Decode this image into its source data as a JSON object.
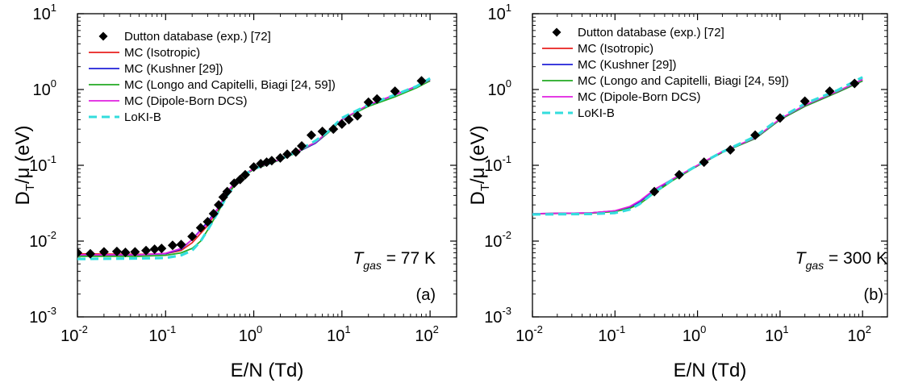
{
  "chart_data": [
    {
      "type": "line",
      "panel_label": "(a)",
      "annotation": {
        "main": "T",
        "sub": "gas",
        "rest": " = 77 K"
      },
      "xlabel": "E/N (Td)",
      "ylabel": {
        "main": "D",
        "sub": "T",
        "rest": "/μ (eV)"
      },
      "xscale": "log",
      "yscale": "log",
      "xlim": [
        0.01,
        200
      ],
      "ylim": [
        0.001,
        10
      ],
      "xticks": [
        {
          "base": "10",
          "exp": "-2"
        },
        {
          "base": "10",
          "exp": "-1"
        },
        {
          "base": "10",
          "exp": "0"
        },
        {
          "base": "10",
          "exp": "1"
        },
        {
          "base": "10",
          "exp": "2"
        }
      ],
      "yticks": [
        {
          "base": "10",
          "exp": "-3"
        },
        {
          "base": "10",
          "exp": "-2"
        },
        {
          "base": "10",
          "exp": "-1"
        },
        {
          "base": "10",
          "exp": "0"
        },
        {
          "base": "10",
          "exp": "1"
        }
      ],
      "legend_position": "top-left",
      "series": [
        {
          "name": "Dutton database (exp.) [72]",
          "kind": "marker",
          "color": "#000000",
          "x": [
            0.01,
            0.014,
            0.02,
            0.028,
            0.035,
            0.045,
            0.06,
            0.075,
            0.09,
            0.12,
            0.15,
            0.2,
            0.25,
            0.3,
            0.35,
            0.4,
            0.45,
            0.5,
            0.6,
            0.7,
            0.8,
            1.0,
            1.2,
            1.4,
            1.6,
            2.0,
            2.4,
            3.0,
            3.5,
            4.5,
            6.0,
            8.0,
            10,
            12,
            15,
            20,
            25,
            40,
            80
          ],
          "y": [
            0.007,
            0.0068,
            0.0072,
            0.0073,
            0.0071,
            0.0072,
            0.0075,
            0.0078,
            0.008,
            0.0088,
            0.009,
            0.0115,
            0.015,
            0.018,
            0.023,
            0.03,
            0.038,
            0.045,
            0.058,
            0.065,
            0.075,
            0.095,
            0.105,
            0.11,
            0.115,
            0.125,
            0.14,
            0.15,
            0.18,
            0.25,
            0.28,
            0.3,
            0.35,
            0.4,
            0.45,
            0.68,
            0.75,
            0.95,
            1.3
          ]
        },
        {
          "name": "MC (Isotropic)",
          "kind": "line",
          "color": "#e8201e",
          "x": [
            0.01,
            0.05,
            0.1,
            0.15,
            0.2,
            0.3,
            0.4,
            0.5,
            0.7,
            1.0,
            2.0,
            3.0,
            5.0,
            7.0,
            10,
            20,
            40,
            70,
            100
          ],
          "y": [
            0.0068,
            0.0067,
            0.0068,
            0.0075,
            0.0095,
            0.016,
            0.027,
            0.042,
            0.072,
            0.09,
            0.12,
            0.15,
            0.2,
            0.27,
            0.4,
            0.62,
            0.85,
            1.1,
            1.35
          ]
        },
        {
          "name": "MC (Kushner [29])",
          "kind": "line",
          "color": "#2020d8",
          "x": [
            0.01,
            0.05,
            0.1,
            0.15,
            0.2,
            0.3,
            0.4,
            0.5,
            0.7,
            1.0,
            2.0,
            3.0,
            5.0,
            7.0,
            10,
            20,
            40,
            70,
            100
          ],
          "y": [
            0.0065,
            0.0066,
            0.0068,
            0.0078,
            0.0105,
            0.018,
            0.028,
            0.045,
            0.07,
            0.088,
            0.118,
            0.145,
            0.195,
            0.27,
            0.4,
            0.62,
            0.85,
            1.1,
            1.3
          ]
        },
        {
          "name": "MC (Longo and Capitelli, Biagi [24, 59])",
          "kind": "line",
          "color": "#22aa22",
          "x": [
            0.01,
            0.05,
            0.1,
            0.15,
            0.2,
            0.25,
            0.3,
            0.4,
            0.5,
            0.7,
            1.0,
            2.0,
            3.0,
            5.0,
            7.0,
            10,
            20,
            40,
            70,
            100
          ],
          "y": [
            0.0063,
            0.0063,
            0.0065,
            0.007,
            0.008,
            0.01,
            0.014,
            0.025,
            0.04,
            0.068,
            0.088,
            0.118,
            0.145,
            0.2,
            0.27,
            0.4,
            0.6,
            0.8,
            1.05,
            1.3
          ]
        },
        {
          "name": "MC (Dipole-Born DCS)",
          "kind": "line",
          "color": "#e020e0",
          "x": [
            0.01,
            0.05,
            0.1,
            0.15,
            0.2,
            0.3,
            0.4,
            0.5,
            0.7,
            1.0,
            2.0,
            3.0,
            5.0,
            7.0,
            10,
            20,
            40,
            70,
            100
          ],
          "y": [
            0.0066,
            0.0066,
            0.0069,
            0.008,
            0.0105,
            0.017,
            0.028,
            0.045,
            0.07,
            0.09,
            0.12,
            0.148,
            0.2,
            0.28,
            0.4,
            0.63,
            0.85,
            1.1,
            1.35
          ]
        },
        {
          "name": "LoKI-B",
          "kind": "dashed",
          "color": "#33dddd",
          "x": [
            0.01,
            0.05,
            0.1,
            0.15,
            0.2,
            0.25,
            0.3,
            0.4,
            0.5,
            0.7,
            1.0,
            2.0,
            3.0,
            5.0,
            7.0,
            10,
            20,
            40,
            70,
            100
          ],
          "y": [
            0.0058,
            0.0059,
            0.006,
            0.0065,
            0.0075,
            0.01,
            0.014,
            0.025,
            0.04,
            0.068,
            0.09,
            0.12,
            0.15,
            0.21,
            0.28,
            0.42,
            0.63,
            0.85,
            1.1,
            1.4
          ]
        }
      ]
    },
    {
      "type": "line",
      "panel_label": "(b)",
      "annotation": {
        "main": "T",
        "sub": "gas",
        "rest": " = 300 K"
      },
      "xlabel": "E/N (Td)",
      "ylabel": {
        "main": "D",
        "sub": "T",
        "rest": "/μ (eV)"
      },
      "xscale": "log",
      "yscale": "log",
      "xlim": [
        0.01,
        200
      ],
      "ylim": [
        0.001,
        10
      ],
      "xticks": [
        {
          "base": "10",
          "exp": "-2"
        },
        {
          "base": "10",
          "exp": "-1"
        },
        {
          "base": "10",
          "exp": "0"
        },
        {
          "base": "10",
          "exp": "1"
        },
        {
          "base": "10",
          "exp": "2"
        }
      ],
      "yticks": [
        {
          "base": "10",
          "exp": "-3"
        },
        {
          "base": "10",
          "exp": "-2"
        },
        {
          "base": "10",
          "exp": "-1"
        },
        {
          "base": "10",
          "exp": "0"
        },
        {
          "base": "10",
          "exp": "1"
        }
      ],
      "legend_position": "top-left",
      "series": [
        {
          "name": "Dutton database (exp.) [72]",
          "kind": "marker",
          "color": "#000000",
          "x": [
            0.3,
            0.6,
            1.2,
            2.5,
            5.0,
            10,
            20,
            40,
            80
          ],
          "y": [
            0.045,
            0.075,
            0.11,
            0.16,
            0.25,
            0.42,
            0.7,
            0.95,
            1.2
          ]
        },
        {
          "name": "MC (Isotropic)",
          "kind": "line",
          "color": "#e8201e",
          "x": [
            0.01,
            0.05,
            0.1,
            0.15,
            0.2,
            0.3,
            0.5,
            1.0,
            2.0,
            5.0,
            10,
            20,
            50,
            100
          ],
          "y": [
            0.023,
            0.0235,
            0.025,
            0.028,
            0.033,
            0.046,
            0.065,
            0.1,
            0.15,
            0.23,
            0.4,
            0.62,
            0.95,
            1.35
          ]
        },
        {
          "name": "MC (Kushner [29])",
          "kind": "line",
          "color": "#2020d8",
          "x": [
            0.01,
            0.05,
            0.1,
            0.15,
            0.2,
            0.3,
            0.5,
            1.0,
            2.0,
            5.0,
            10,
            20,
            50,
            100
          ],
          "y": [
            0.023,
            0.0235,
            0.025,
            0.028,
            0.033,
            0.047,
            0.064,
            0.098,
            0.148,
            0.225,
            0.4,
            0.6,
            0.92,
            1.3
          ]
        },
        {
          "name": "MC (Longo and Capitelli, Biagi [24, 59])",
          "kind": "line",
          "color": "#22aa22",
          "x": [
            0.01,
            0.05,
            0.1,
            0.15,
            0.2,
            0.3,
            0.5,
            1.0,
            2.0,
            5.0,
            10,
            20,
            50,
            100
          ],
          "y": [
            0.023,
            0.0233,
            0.0245,
            0.027,
            0.031,
            0.043,
            0.063,
            0.098,
            0.148,
            0.225,
            0.4,
            0.6,
            0.92,
            1.3
          ]
        },
        {
          "name": "MC (Dipole-Born DCS)",
          "kind": "line",
          "color": "#e020e0",
          "x": [
            0.01,
            0.05,
            0.1,
            0.15,
            0.2,
            0.3,
            0.5,
            1.0,
            2.0,
            5.0,
            10,
            20,
            50,
            100
          ],
          "y": [
            0.023,
            0.0235,
            0.0252,
            0.0285,
            0.034,
            0.048,
            0.066,
            0.1,
            0.152,
            0.23,
            0.41,
            0.62,
            0.95,
            1.35
          ]
        },
        {
          "name": "LoKI-B",
          "kind": "dashed",
          "color": "#33dddd",
          "x": [
            0.01,
            0.05,
            0.1,
            0.15,
            0.2,
            0.3,
            0.5,
            1.0,
            2.0,
            5.0,
            10,
            20,
            50,
            100
          ],
          "y": [
            0.0225,
            0.0228,
            0.0235,
            0.026,
            0.031,
            0.044,
            0.065,
            0.1,
            0.15,
            0.24,
            0.42,
            0.65,
            0.98,
            1.45
          ]
        }
      ]
    }
  ]
}
